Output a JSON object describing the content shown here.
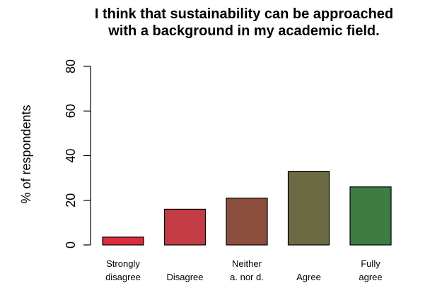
{
  "chart_data": {
    "type": "bar",
    "title": [
      "I think that sustainability can be approached",
      "with a background in my academic field."
    ],
    "ylabel": "% of respondents",
    "xlabel": "",
    "ylim": [
      0,
      80
    ],
    "yticks": [
      0,
      20,
      40,
      60,
      80
    ],
    "grid": false,
    "categories": [
      [
        "Strongly",
        "disagree"
      ],
      [
        "Disagree"
      ],
      [
        "Neither",
        "a. nor d."
      ],
      [
        "Agree"
      ],
      [
        "Fully",
        "agree"
      ]
    ],
    "values": [
      3.5,
      16,
      21,
      33,
      26
    ],
    "colors": [
      "#dd2b3d",
      "#c23b45",
      "#8c4f3e",
      "#6c6a43",
      "#3d7c43"
    ]
  }
}
